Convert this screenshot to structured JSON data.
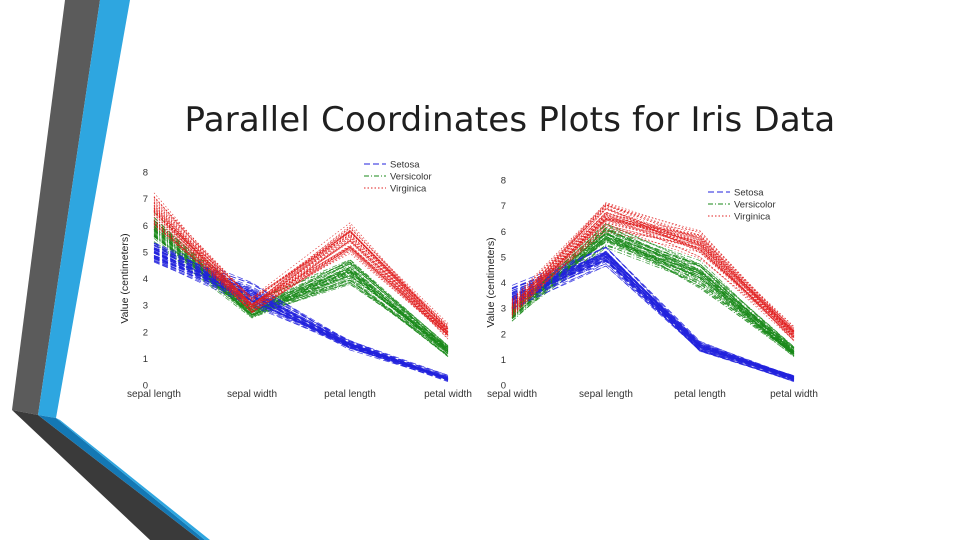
{
  "slide": {
    "title": "Parallel Coordinates Plots for Iris Data",
    "accent_colors": {
      "dark": "#5b5b5b",
      "blue": "#2ea6e0",
      "deep_blue": "#1478b4",
      "black": "#333333"
    }
  },
  "colors": {
    "Setosa": "#2222dd",
    "Versicolor": "#1a8a1a",
    "Virginica": "#e02020"
  },
  "chart_data": [
    {
      "type": "parallel-coordinates",
      "title": "",
      "ylabel": "Value (centimeters)",
      "ylim": [
        0,
        8
      ],
      "yticks": [
        "0",
        "1",
        "2",
        "3",
        "4",
        "5",
        "6",
        "7",
        "8"
      ],
      "axes": [
        "sepal length",
        "sepal width",
        "petal length",
        "petal width"
      ],
      "legend": {
        "entries": [
          "Setosa",
          "Versicolor",
          "Virginica"
        ],
        "position": "top-right"
      },
      "series": [
        {
          "name": "Setosa",
          "style": "dashed",
          "mean": [
            5.0,
            3.4,
            1.5,
            0.25
          ],
          "spread": [
            0.35,
            0.38,
            0.17,
            0.1
          ],
          "n": 50
        },
        {
          "name": "Versicolor",
          "style": "dash-dot",
          "mean": [
            5.9,
            2.8,
            4.3,
            1.3
          ],
          "spread": [
            0.5,
            0.3,
            0.45,
            0.2
          ],
          "n": 50
        },
        {
          "name": "Virginica",
          "style": "dotted",
          "mean": [
            6.6,
            3.0,
            5.5,
            2.0
          ],
          "spread": [
            0.6,
            0.3,
            0.5,
            0.25
          ],
          "n": 50
        }
      ]
    },
    {
      "type": "parallel-coordinates",
      "title": "",
      "ylabel": "Value (centimeters)",
      "ylim": [
        0,
        8
      ],
      "yticks": [
        "0",
        "1",
        "2",
        "3",
        "4",
        "5",
        "6",
        "7",
        "8"
      ],
      "axes": [
        "sepal width",
        "sepal length",
        "petal length",
        "petal width"
      ],
      "legend": {
        "entries": [
          "Setosa",
          "Versicolor",
          "Virginica"
        ],
        "position": "top-right"
      },
      "series": [
        {
          "name": "Setosa",
          "style": "dashed",
          "mean": [
            3.4,
            5.0,
            1.5,
            0.25
          ],
          "spread": [
            0.38,
            0.35,
            0.17,
            0.1
          ],
          "n": 50
        },
        {
          "name": "Versicolor",
          "style": "dash-dot",
          "mean": [
            2.8,
            5.9,
            4.3,
            1.3
          ],
          "spread": [
            0.3,
            0.5,
            0.45,
            0.2
          ],
          "n": 50
        },
        {
          "name": "Virginica",
          "style": "dotted",
          "mean": [
            3.0,
            6.6,
            5.5,
            2.0
          ],
          "spread": [
            0.3,
            0.6,
            0.5,
            0.25
          ],
          "n": 50
        }
      ]
    }
  ]
}
